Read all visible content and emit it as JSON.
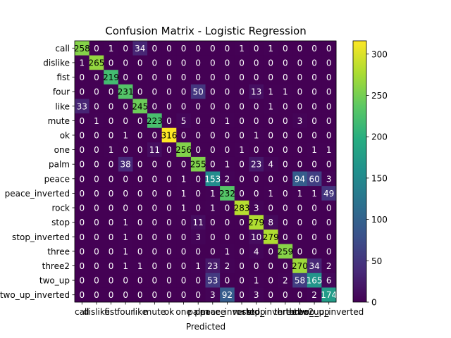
{
  "chart_data": {
    "type": "heatmap",
    "title": "Confusion Matrix - Logistic Regression",
    "xlabel": "Predicted",
    "ylabel": "",
    "labels": [
      "call",
      "dislike",
      "fist",
      "four",
      "like",
      "mute",
      "ok",
      "one",
      "palm",
      "peace",
      "peace_inverted",
      "rock",
      "stop",
      "stop_inverted",
      "three",
      "three2",
      "two_up",
      "two_up_inverted"
    ],
    "y_tick_labels": [
      "call",
      "dislike",
      "fist",
      "four",
      "like",
      "mute",
      "ok",
      "one",
      "palm",
      "peace",
      "peace_inverted",
      "rock",
      "stop",
      "stop_inverted",
      "three",
      "three2",
      "two_up",
      "two_up_inverted"
    ],
    "matrix": [
      [
        258,
        0,
        1,
        0,
        34,
        0,
        0,
        0,
        0,
        0,
        0,
        1,
        0,
        1,
        0,
        0,
        0,
        0
      ],
      [
        1,
        265,
        0,
        0,
        0,
        0,
        0,
        0,
        0,
        0,
        0,
        0,
        0,
        0,
        0,
        0,
        0,
        0
      ],
      [
        0,
        0,
        219,
        0,
        0,
        0,
        0,
        0,
        0,
        0,
        0,
        0,
        0,
        0,
        0,
        0,
        0,
        0
      ],
      [
        0,
        0,
        0,
        231,
        0,
        0,
        0,
        0,
        50,
        0,
        0,
        0,
        13,
        1,
        1,
        0,
        0,
        0
      ],
      [
        33,
        0,
        0,
        0,
        245,
        0,
        0,
        0,
        0,
        0,
        0,
        0,
        0,
        1,
        0,
        0,
        0,
        0
      ],
      [
        0,
        1,
        0,
        0,
        0,
        223,
        0,
        5,
        0,
        0,
        1,
        0,
        0,
        0,
        0,
        3,
        0,
        0
      ],
      [
        0,
        0,
        0,
        1,
        0,
        0,
        316,
        0,
        0,
        0,
        0,
        0,
        1,
        0,
        0,
        0,
        0,
        0
      ],
      [
        0,
        0,
        1,
        0,
        0,
        11,
        0,
        256,
        0,
        0,
        0,
        1,
        0,
        0,
        0,
        0,
        1,
        1
      ],
      [
        0,
        0,
        0,
        38,
        0,
        0,
        0,
        0,
        255,
        0,
        1,
        0,
        23,
        4,
        0,
        0,
        0,
        0
      ],
      [
        0,
        0,
        0,
        0,
        0,
        0,
        0,
        1,
        0,
        153,
        2,
        0,
        0,
        0,
        0,
        94,
        60,
        3
      ],
      [
        0,
        0,
        0,
        0,
        0,
        0,
        0,
        1,
        0,
        1,
        232,
        0,
        0,
        1,
        0,
        1,
        1,
        49
      ],
      [
        0,
        0,
        0,
        0,
        0,
        0,
        0,
        1,
        0,
        1,
        0,
        283,
        3,
        0,
        0,
        0,
        0,
        0
      ],
      [
        0,
        0,
        0,
        1,
        0,
        0,
        0,
        0,
        11,
        0,
        0,
        0,
        279,
        8,
        0,
        0,
        0,
        0
      ],
      [
        0,
        0,
        0,
        1,
        0,
        0,
        0,
        0,
        3,
        0,
        0,
        0,
        10,
        279,
        0,
        0,
        0,
        0
      ],
      [
        0,
        0,
        0,
        1,
        0,
        0,
        0,
        0,
        0,
        0,
        1,
        0,
        4,
        0,
        259,
        0,
        0,
        0
      ],
      [
        0,
        0,
        0,
        1,
        1,
        0,
        0,
        0,
        1,
        23,
        2,
        0,
        0,
        0,
        0,
        270,
        34,
        2
      ],
      [
        0,
        0,
        0,
        0,
        0,
        0,
        0,
        0,
        0,
        53,
        0,
        0,
        1,
        0,
        2,
        58,
        165,
        6
      ],
      [
        0,
        0,
        0,
        0,
        0,
        0,
        0,
        0,
        0,
        3,
        92,
        0,
        3,
        0,
        0,
        0,
        2,
        174
      ]
    ],
    "vmin": 0,
    "vmax": 316,
    "colormap": "viridis",
    "colorbar_ticks": [
      0,
      50,
      100,
      150,
      200,
      250,
      300
    ],
    "text_color_dark": "#ffffff",
    "text_color_light": "#000000"
  }
}
